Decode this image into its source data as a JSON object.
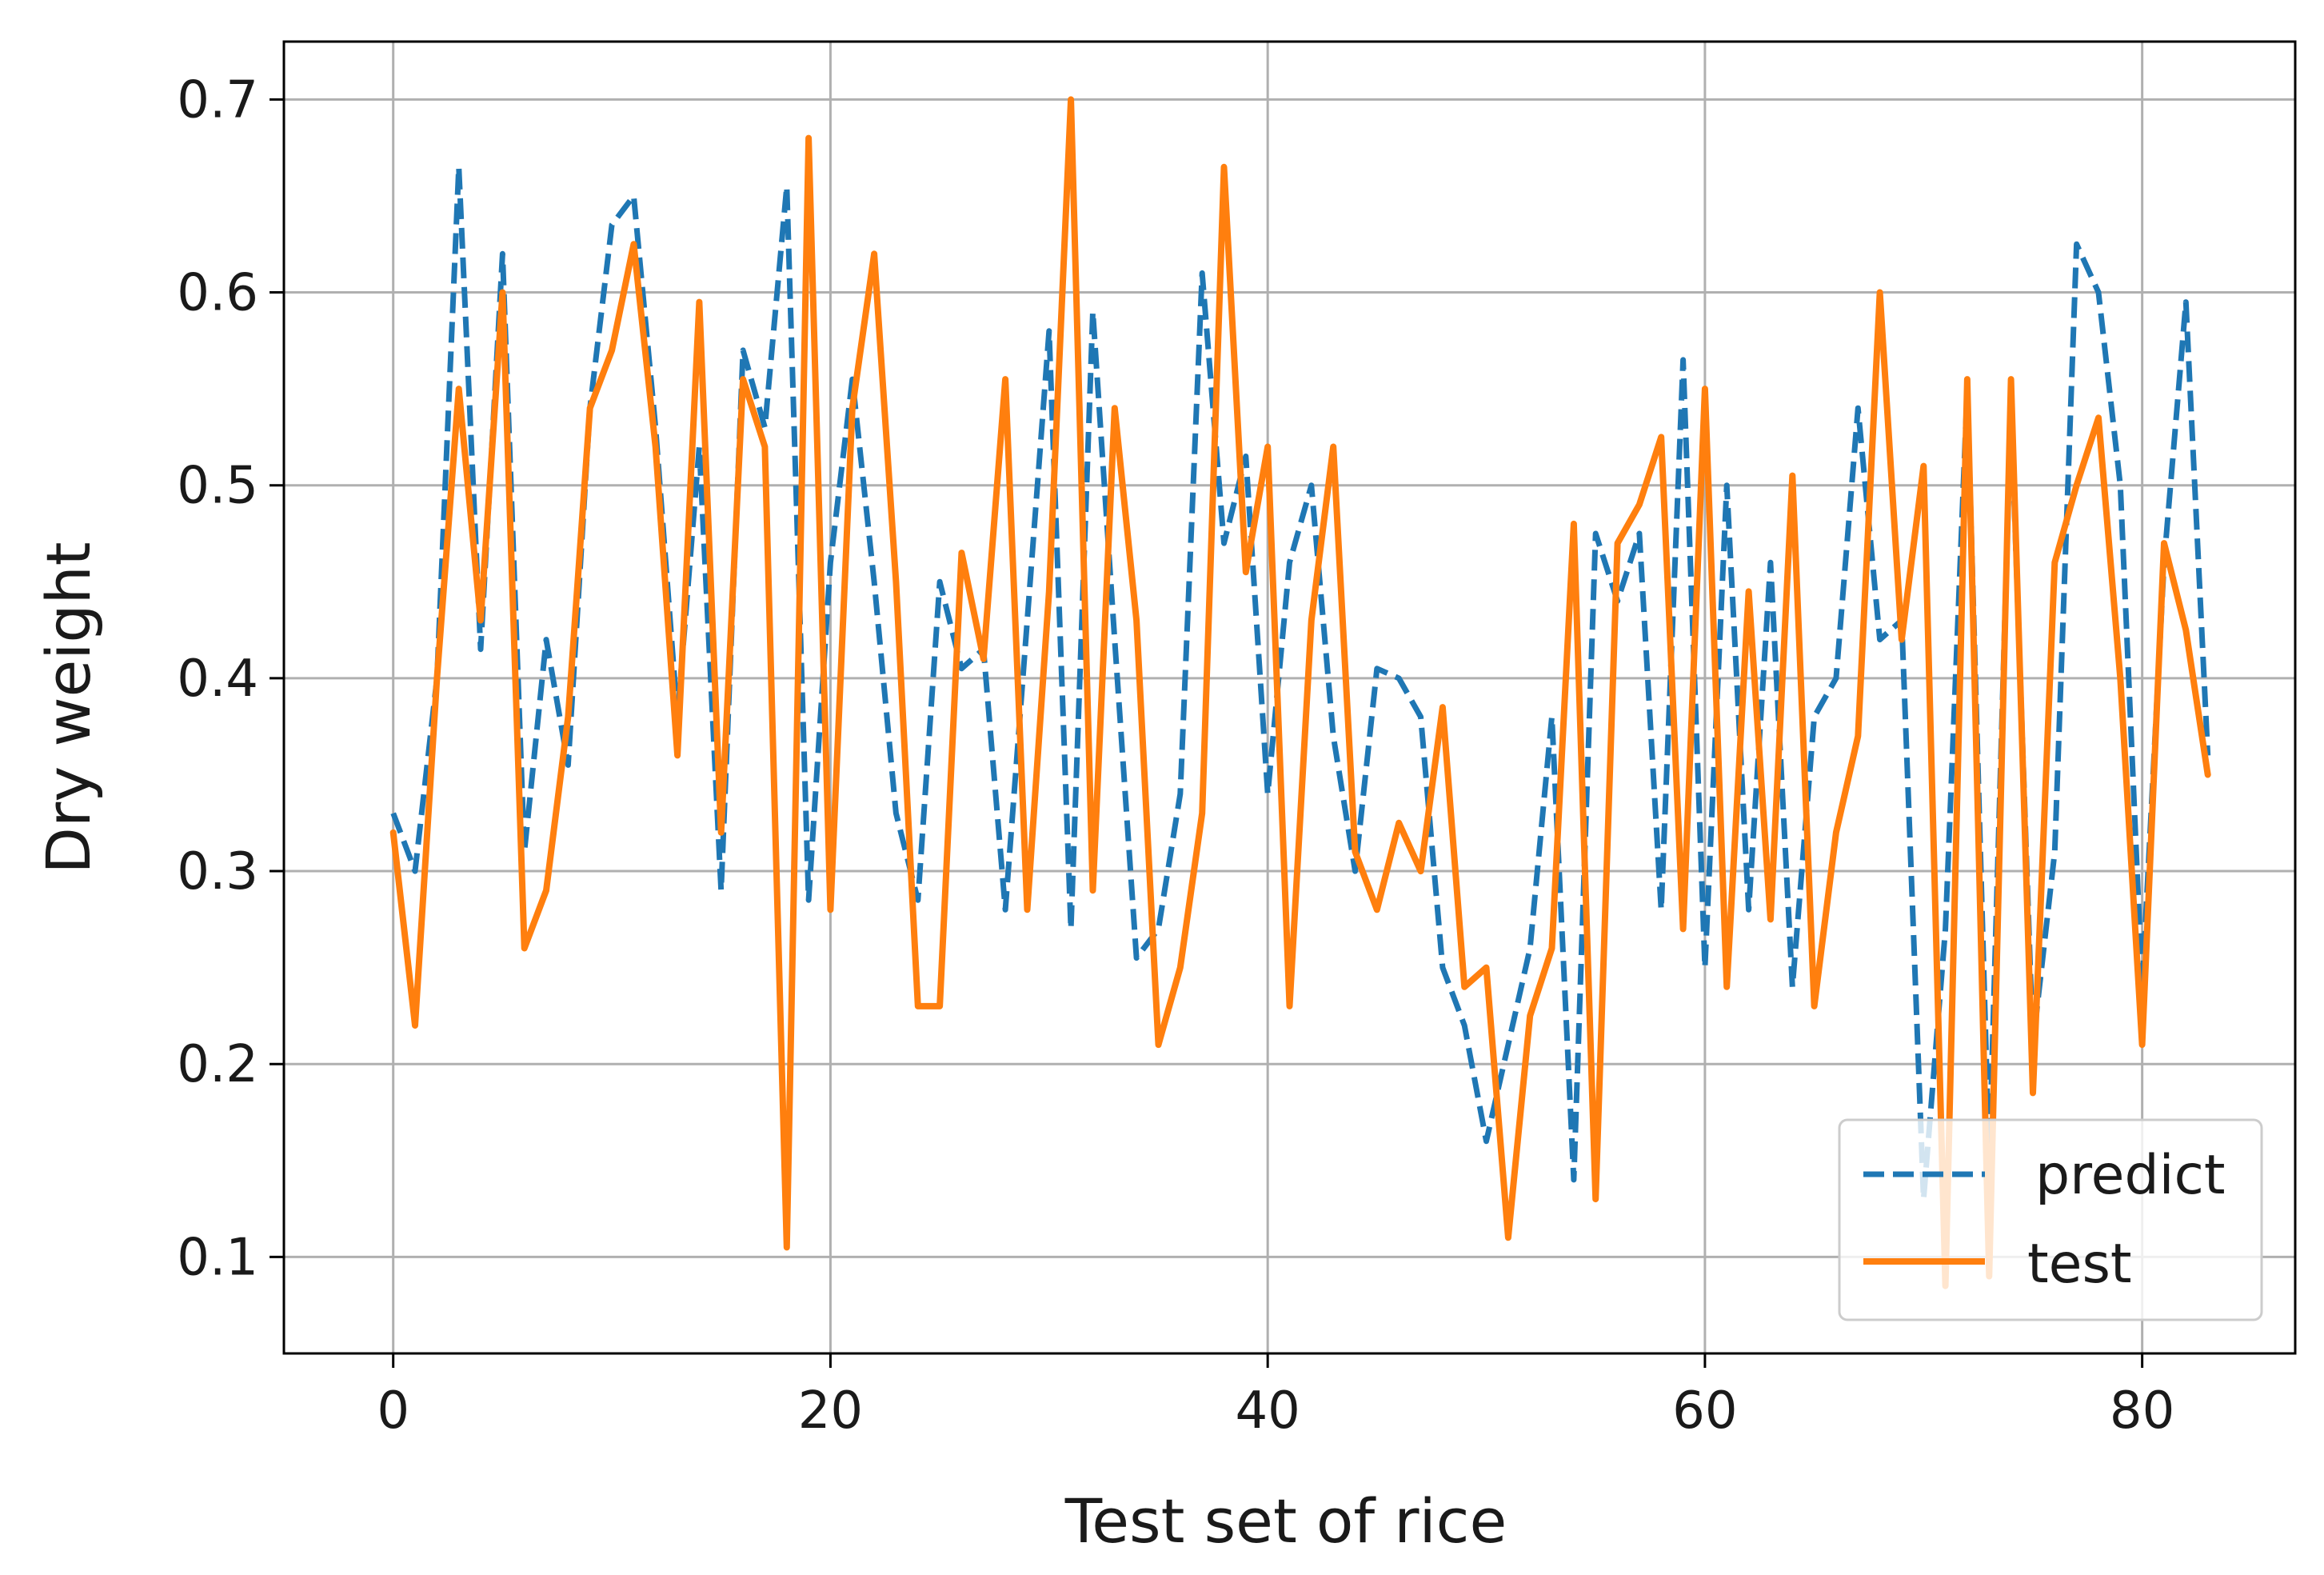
{
  "chart_data": {
    "type": "line",
    "title": "",
    "xlabel": "Test set of rice",
    "ylabel": "Dry weight",
    "xlim": [
      -5,
      87
    ],
    "ylim": [
      0.05,
      0.73
    ],
    "grid": true,
    "legend_position": "lower-right",
    "x_ticks": [
      0,
      20,
      40,
      60,
      80
    ],
    "x_tick_labels": [
      "0",
      "20",
      "40",
      "60",
      "80"
    ],
    "y_ticks": [
      0.1,
      0.2,
      0.3,
      0.4,
      0.5,
      0.6,
      0.7
    ],
    "y_tick_labels": [
      "0.1",
      "0.2",
      "0.3",
      "0.4",
      "0.5",
      "0.6",
      "0.7"
    ],
    "series": [
      {
        "name": "predict",
        "color": "#1f77b4",
        "style": "dashed",
        "values": [
          0.33,
          0.3,
          0.4,
          0.665,
          0.415,
          0.62,
          0.31,
          0.42,
          0.355,
          0.54,
          0.635,
          0.65,
          0.53,
          0.38,
          0.52,
          0.29,
          0.57,
          0.53,
          0.655,
          0.285,
          0.46,
          0.555,
          0.45,
          0.33,
          0.285,
          0.45,
          0.405,
          0.415,
          0.28,
          0.43,
          0.58,
          0.27,
          0.59,
          0.42,
          0.255,
          0.27,
          0.34,
          0.61,
          0.47,
          0.515,
          0.34,
          0.46,
          0.5,
          0.37,
          0.3,
          0.405,
          0.4,
          0.38,
          0.25,
          0.22,
          0.16,
          0.21,
          0.26,
          0.38,
          0.14,
          0.475,
          0.44,
          0.475,
          0.28,
          0.565,
          0.25,
          0.5,
          0.28,
          0.46,
          0.24,
          0.38,
          0.4,
          0.54,
          0.42,
          0.43,
          0.13,
          0.27,
          0.55,
          0.15,
          0.54,
          0.21,
          0.31,
          0.625,
          0.6,
          0.5,
          0.24,
          0.46,
          0.595,
          0.36
        ]
      },
      {
        "name": "test",
        "color": "#ff7f0e",
        "style": "solid",
        "values": [
          0.32,
          0.22,
          0.4,
          0.55,
          0.43,
          0.6,
          0.26,
          0.29,
          0.38,
          0.54,
          0.57,
          0.625,
          0.52,
          0.36,
          0.595,
          0.32,
          0.555,
          0.52,
          0.105,
          0.68,
          0.28,
          0.54,
          0.62,
          0.45,
          0.23,
          0.23,
          0.465,
          0.41,
          0.555,
          0.28,
          0.445,
          0.7,
          0.29,
          0.54,
          0.43,
          0.21,
          0.25,
          0.33,
          0.665,
          0.455,
          0.52,
          0.23,
          0.43,
          0.52,
          0.31,
          0.28,
          0.325,
          0.3,
          0.385,
          0.24,
          0.25,
          0.11,
          0.225,
          0.26,
          0.48,
          0.13,
          0.47,
          0.49,
          0.525,
          0.27,
          0.55,
          0.24,
          0.445,
          0.275,
          0.505,
          0.23,
          0.32,
          0.37,
          0.6,
          0.42,
          0.51,
          0.085,
          0.555,
          0.09,
          0.555,
          0.185,
          0.46,
          0.5,
          0.535,
          0.4,
          0.21,
          0.47,
          0.425,
          0.35
        ]
      }
    ]
  }
}
